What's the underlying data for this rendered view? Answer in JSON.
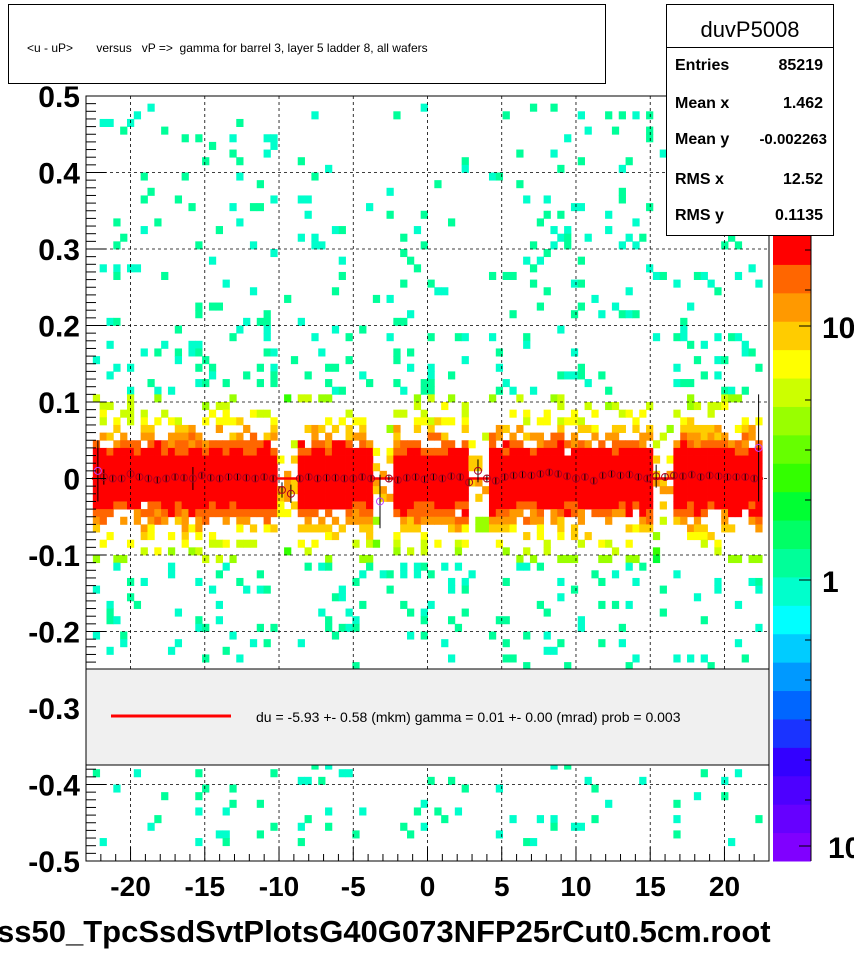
{
  "title": "<u - uP>       versus   vP =>  gamma for barrel 3, layer 5 ladder 8, all wafers",
  "stats": {
    "name": "duvP5008",
    "rows": [
      {
        "label": "Entries",
        "value": "85219"
      },
      {
        "label": "Mean x",
        "value": "1.462"
      },
      {
        "label": "Mean y",
        "value": "-0.002263"
      },
      {
        "label": "RMS x",
        "value": "12.52"
      },
      {
        "label": "RMS y",
        "value": "0.1135"
      }
    ]
  },
  "fit_legend": {
    "text": "du =   -5.93 +-  0.58 (mkm) gamma =    0.01 +-  0.00 (mrad) prob = 0.003",
    "line_color": "#ff0000"
  },
  "footer": "ss50_TpcSsdSvtPlotsG40G073NFP25rCut0.5cm.root",
  "palette": [
    "#8000ff",
    "#6600ff",
    "#4d00ff",
    "#3300ff",
    "#1a33ff",
    "#0066ff",
    "#0099ff",
    "#00ccff",
    "#00ffff",
    "#00ffcc",
    "#00ff99",
    "#00ff66",
    "#00ff33",
    "#33ff00",
    "#66ff00",
    "#99ff00",
    "#ccff00",
    "#ffff00",
    "#ffcc00",
    "#ff9900",
    "#ff6600",
    "#ff0000"
  ],
  "chart_data": {
    "type": "heatmap",
    "xlim": [
      -23,
      23
    ],
    "ylim": [
      -0.5,
      0.5
    ],
    "x_ticks": [
      "-20",
      "-15",
      "-10",
      "-5",
      "0",
      "5",
      "10",
      "15",
      "20"
    ],
    "y_ticks": [
      "0.5",
      "0.4",
      "0.3",
      "0.2",
      "0.1",
      "0",
      "-0.1",
      "-0.2",
      "-0.3",
      "-0.4",
      "-0.5"
    ],
    "z_scale": "log",
    "z_ticks": [
      "10",
      "1",
      "10"
    ],
    "grid": true,
    "x_gaps": [
      -9.5,
      -3.2,
      3.3,
      15.8
    ],
    "profile": {
      "x": [
        -22.2,
        -21.8,
        -21.2,
        -20.6,
        -20.0,
        -19.4,
        -18.8,
        -18.2,
        -17.6,
        -17.0,
        -16.4,
        -15.8,
        -15.2,
        -14.6,
        -14.0,
        -13.4,
        -12.8,
        -12.2,
        -11.6,
        -11.0,
        -10.4,
        -9.8,
        -9.2,
        -8.6,
        -8.0,
        -7.4,
        -6.8,
        -6.2,
        -5.6,
        -5.0,
        -4.4,
        -3.8,
        -3.2,
        -2.6,
        -2.0,
        -1.4,
        -0.8,
        -0.2,
        0.4,
        1.0,
        1.6,
        2.2,
        2.8,
        3.4,
        4.0,
        4.6,
        5.2,
        5.8,
        6.4,
        7.0,
        7.6,
        8.2,
        8.8,
        9.4,
        10.0,
        10.6,
        11.2,
        11.8,
        12.4,
        13.0,
        13.6,
        14.2,
        14.8,
        15.4,
        16.0,
        16.6,
        17.2,
        17.8,
        18.4,
        19.0,
        19.6,
        20.2,
        20.8,
        21.4,
        22.0,
        22.3
      ],
      "y": [
        0.01,
        0.002,
        0.0,
        0.0,
        0.006,
        0.002,
        0.0,
        -0.002,
        0.0,
        0.002,
        0.001,
        0.0,
        0.004,
        0.001,
        0.0,
        0.002,
        0.002,
        0.001,
        0.0,
        0.002,
        0.0,
        -0.015,
        -0.02,
        0.0,
        0.002,
        0.0,
        0.001,
        0.001,
        0.0,
        0.0,
        0.002,
        0.0,
        -0.03,
        0.0,
        -0.002,
        0.001,
        0.002,
        -0.001,
        0.002,
        0.0,
        0.003,
        0.002,
        -0.005,
        0.01,
        0.0,
        -0.003,
        0.002,
        0.004,
        0.005,
        0.004,
        0.006,
        0.008,
        0.006,
        0.003,
        0.0,
        0.002,
        -0.003,
        0.004,
        0.006,
        0.004,
        0.005,
        0.002,
        0.0,
        0.003,
        0.002,
        0.004,
        0.003,
        0.005,
        0.002,
        0.004,
        0.003,
        0.002,
        0.002,
        0.002,
        0.0,
        0.04
      ],
      "yerr": [
        0.04,
        0.01,
        0.005,
        0.005,
        0.006,
        0.005,
        0.005,
        0.005,
        0.005,
        0.005,
        0.005,
        0.015,
        0.005,
        0.005,
        0.005,
        0.005,
        0.005,
        0.005,
        0.005,
        0.005,
        0.005,
        0.01,
        0.012,
        0.005,
        0.005,
        0.005,
        0.005,
        0.005,
        0.005,
        0.005,
        0.005,
        0.005,
        0.035,
        0.005,
        0.005,
        0.005,
        0.005,
        0.005,
        0.005,
        0.005,
        0.005,
        0.005,
        0.005,
        0.015,
        0.005,
        0.005,
        0.005,
        0.005,
        0.005,
        0.005,
        0.005,
        0.005,
        0.005,
        0.005,
        0.005,
        0.005,
        0.005,
        0.005,
        0.005,
        0.005,
        0.005,
        0.005,
        0.005,
        0.015,
        0.005,
        0.005,
        0.005,
        0.005,
        0.005,
        0.005,
        0.005,
        0.005,
        0.005,
        0.005,
        0.005,
        0.07
      ]
    },
    "fit_line": {
      "y": 0.0,
      "color": "#ff0000"
    }
  }
}
